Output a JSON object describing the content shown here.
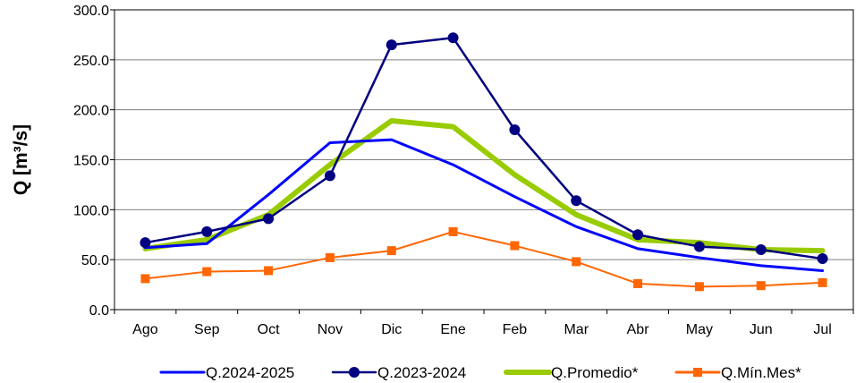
{
  "chart_data": {
    "type": "line",
    "title": "",
    "xlabel": "",
    "ylabel": "Q [m³/s]",
    "ylim": [
      0,
      300
    ],
    "yticks": [
      "0.0",
      "50.0",
      "100.0",
      "150.0",
      "200.0",
      "250.0",
      "300.0"
    ],
    "grid": "horizontal",
    "legend": "bottom",
    "categories": [
      "Ago",
      "Sep",
      "Oct",
      "Nov",
      "Dic",
      "Ene",
      "Feb",
      "Mar",
      "Abr",
      "May",
      "Jun",
      "Jul"
    ],
    "series": [
      {
        "name": "Q.2024-2025",
        "color": "#0000ff",
        "marker": "none",
        "values": [
          62,
          66,
          115,
          167,
          170,
          145,
          113,
          83,
          61,
          52,
          44,
          39
        ]
      },
      {
        "name": "Q.2023-2024",
        "color": "#000080",
        "marker": "circle",
        "values": [
          67,
          78,
          91,
          134,
          265,
          272,
          180,
          109,
          75,
          63,
          60,
          51
        ]
      },
      {
        "name": "Q.Promedio*",
        "color": "#99cc00",
        "marker": "none",
        "values": [
          61,
          70,
          95,
          145,
          189,
          183,
          135,
          95,
          70,
          67,
          60,
          59
        ]
      },
      {
        "name": "Q.Mín.Mes*",
        "color": "#ff6600",
        "marker": "square",
        "values": [
          31,
          38,
          39,
          52,
          59,
          78,
          64,
          48,
          26,
          23,
          24,
          27
        ]
      }
    ]
  }
}
